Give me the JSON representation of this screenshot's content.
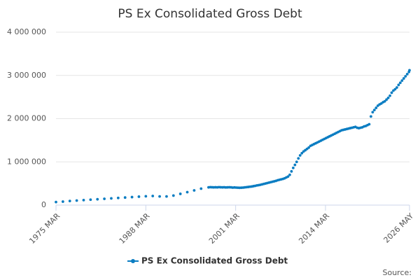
{
  "chart_data": {
    "type": "scatter",
    "title": "PS Ex Consolidated Gross Debt",
    "x": [
      1975.17,
      1976.17,
      1977.17,
      1978.17,
      1979.17,
      1980.17,
      1981.17,
      1982.17,
      1983.17,
      1984.17,
      1985.17,
      1986.17,
      1987.17,
      1988.17,
      1989.17,
      1990.17,
      1991.17,
      1992.17,
      1993.17,
      1994.17,
      1995.17,
      1996.17,
      1997.25,
      1997.5,
      1997.75,
      1998,
      1998.25,
      1998.5,
      1998.75,
      1999,
      1999.25,
      1999.5,
      1999.75,
      2000,
      2000.25,
      2000.5,
      2000.75,
      2001,
      2001.25,
      2001.5,
      2001.75,
      2002,
      2002.25,
      2002.5,
      2002.75,
      2003,
      2003.25,
      2003.5,
      2003.75,
      2004,
      2004.25,
      2004.5,
      2004.75,
      2005,
      2005.25,
      2005.5,
      2005.75,
      2006,
      2006.25,
      2006.5,
      2006.75,
      2007,
      2007.25,
      2007.5,
      2007.75,
      2008,
      2008.25,
      2008.5,
      2008.75,
      2009,
      2009.25,
      2009.5,
      2009.75,
      2010,
      2010.25,
      2010.5,
      2010.75,
      2011,
      2011.25,
      2011.5,
      2011.75,
      2012,
      2012.25,
      2012.5,
      2012.75,
      2013,
      2013.25,
      2013.5,
      2013.75,
      2014,
      2014.25,
      2014.5,
      2014.75,
      2015,
      2015.25,
      2015.5,
      2015.75,
      2016,
      2016.25,
      2016.5,
      2016.75,
      2017,
      2017.25,
      2017.5,
      2017.75,
      2018,
      2018.25,
      2018.5,
      2018.75,
      2019,
      2019.25,
      2019.5,
      2019.75,
      2020,
      2020.25,
      2020.5,
      2020.75,
      2021,
      2021.25,
      2021.5,
      2021.75,
      2022,
      2022.25,
      2022.5,
      2022.75,
      2023,
      2023.25,
      2023.5,
      2023.75,
      2024,
      2024.25,
      2024.5,
      2024.75,
      2025,
      2025.25,
      2025.5,
      2025.75,
      2026,
      2026.25,
      2026.33
    ],
    "series": [
      {
        "name": "PS Ex Consolidated Gross Debt",
        "color": "#0b7dc2",
        "values": [
          70000,
          80000,
          95000,
          105000,
          115000,
          125000,
          135000,
          145000,
          155000,
          165000,
          175000,
          185000,
          195000,
          205000,
          210000,
          200000,
          200000,
          220000,
          260000,
          300000,
          340000,
          380000,
          410000,
          415000,
          412000,
          410000,
          412000,
          410000,
          415000,
          412000,
          410000,
          412000,
          408000,
          410000,
          412000,
          410000,
          405000,
          408000,
          405000,
          402000,
          400000,
          402000,
          405000,
          410000,
          415000,
          420000,
          425000,
          430000,
          438000,
          445000,
          455000,
          462000,
          470000,
          480000,
          490000,
          500000,
          510000,
          520000,
          530000,
          540000,
          550000,
          560000,
          575000,
          585000,
          595000,
          605000,
          620000,
          640000,
          660000,
          700000,
          780000,
          860000,
          930000,
          1000000,
          1080000,
          1150000,
          1200000,
          1240000,
          1270000,
          1300000,
          1330000,
          1370000,
          1390000,
          1410000,
          1430000,
          1450000,
          1470000,
          1490000,
          1510000,
          1530000,
          1550000,
          1570000,
          1590000,
          1610000,
          1630000,
          1650000,
          1670000,
          1690000,
          1710000,
          1730000,
          1740000,
          1750000,
          1760000,
          1770000,
          1780000,
          1790000,
          1800000,
          1810000,
          1790000,
          1780000,
          1790000,
          1800000,
          1820000,
          1830000,
          1850000,
          1870000,
          2050000,
          2150000,
          2200000,
          2250000,
          2300000,
          2330000,
          2350000,
          2380000,
          2400000,
          2440000,
          2480000,
          2530000,
          2600000,
          2650000,
          2680000,
          2720000,
          2780000,
          2830000,
          2880000,
          2930000,
          2980000,
          3030000,
          3080000,
          3120000
        ]
      }
    ],
    "xlim": [
      1975.17,
      2026.33
    ],
    "xticks": [
      {
        "value": 1975.17,
        "label": "1975 MAR"
      },
      {
        "value": 1988.17,
        "label": "1988 MAR"
      },
      {
        "value": 2001.17,
        "label": "2001 MAR"
      },
      {
        "value": 2014.17,
        "label": "2014 MAR"
      },
      {
        "value": 2026.33,
        "label": "2026 MAY"
      }
    ],
    "ylim": [
      0,
      4000000
    ],
    "yticks": [
      0,
      {
        "value": 1000000,
        "label": "1 000 000"
      },
      {
        "value": 2000000,
        "label": "2 000 000"
      },
      {
        "value": 3000000,
        "label": "3 000 000"
      },
      {
        "value": 4000000,
        "label": "4 000 000"
      }
    ],
    "grid": true,
    "legend": "bottom",
    "source": "Source:"
  }
}
